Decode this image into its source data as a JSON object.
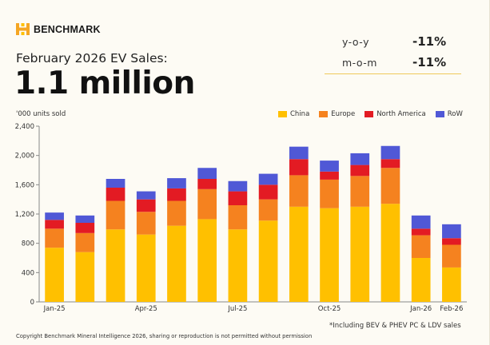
{
  "brand": {
    "name": "BENCHMARK"
  },
  "header": {
    "subtitle": "February 2026 EV Sales:",
    "headline": "1.1 million"
  },
  "stats": [
    {
      "label": "y-o-y",
      "value": "-11%"
    },
    {
      "label": "m-o-m",
      "value": "-11%"
    }
  ],
  "units_label": "'000 units sold",
  "colors": {
    "china": "#ffc000",
    "europe": "#f5821f",
    "north_america": "#e31b23",
    "row": "#5058d6",
    "accent": "#f0c95a"
  },
  "chart_data": {
    "type": "bar",
    "stacked": true,
    "ylim": [
      0,
      2400
    ],
    "yticks": [
      "0",
      "400",
      "800",
      "1,200",
      "1,600",
      "2,000",
      "2,400"
    ],
    "categories": [
      "Jan-25",
      "Feb-25",
      "Mar-25",
      "Apr-25",
      "May-25",
      "Jun-25",
      "Jul-25",
      "Aug-25",
      "Sep-25",
      "Oct-25",
      "Nov-25",
      "Dec-25",
      "Jan-26",
      "Feb-26"
    ],
    "x_tick_labels": [
      "Jan-25",
      "",
      "",
      "Apr-25",
      "",
      "",
      "Jul-25",
      "",
      "",
      "Oct-25",
      "",
      "",
      "Jan-26",
      "Feb-26"
    ],
    "series": [
      {
        "name": "China",
        "color": "#ffc000",
        "values": [
          740,
          680,
          990,
          920,
          1040,
          1130,
          990,
          1110,
          1300,
          1280,
          1300,
          1340,
          600,
          470
        ]
      },
      {
        "name": "Europe",
        "color": "#f5821f",
        "values": [
          260,
          260,
          390,
          310,
          340,
          410,
          330,
          290,
          430,
          390,
          420,
          490,
          310,
          310
        ]
      },
      {
        "name": "North America",
        "color": "#e31b23",
        "values": [
          120,
          140,
          180,
          170,
          170,
          140,
          190,
          200,
          220,
          110,
          150,
          120,
          90,
          90
        ]
      },
      {
        "name": "RoW",
        "color": "#5058d6",
        "values": [
          100,
          100,
          120,
          110,
          140,
          150,
          140,
          150,
          170,
          150,
          160,
          180,
          180,
          190
        ]
      }
    ]
  },
  "footnote": "*Including BEV & PHEV PC & LDV sales",
  "copyright": "Copyright Benchmark Mineral Intelligence 2026, sharing or reproduction is not permitted without permission"
}
